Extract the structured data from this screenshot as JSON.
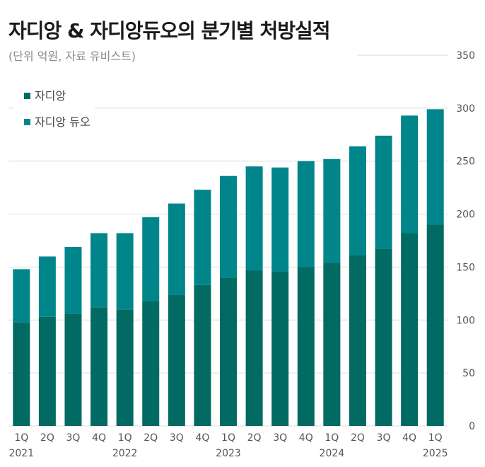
{
  "title": "자디앙 & 자디앙듀오의 분기별 처방실적",
  "subtitle": "(단위 억원, 자료 유비스트)",
  "colors": {
    "jardiance": "#006a63",
    "jardiance_duo": "#00868a",
    "grid": "#dddddd",
    "axis_text": "#555555",
    "legend_text": "#444444"
  },
  "chart_data": {
    "type": "bar",
    "stacked": true,
    "categories": [
      "1Q",
      "2Q",
      "3Q",
      "4Q",
      "1Q",
      "2Q",
      "3Q",
      "4Q",
      "1Q",
      "2Q",
      "3Q",
      "4Q",
      "1Q",
      "2Q",
      "3Q",
      "4Q",
      "1Q"
    ],
    "years": [
      "2021",
      "",
      "",
      "",
      "2022",
      "",
      "",
      "",
      "2023",
      "",
      "",
      "",
      "2024",
      "",
      "",
      "",
      "2025"
    ],
    "series": [
      {
        "name": "자디앙",
        "values": [
          98,
          103,
          106,
          112,
          110,
          118,
          124,
          133,
          140,
          147,
          146,
          150,
          154,
          161,
          167,
          182,
          190
        ]
      },
      {
        "name": "자디앙 듀오",
        "values": [
          50,
          57,
          63,
          70,
          72,
          79,
          86,
          90,
          96,
          98,
          98,
          100,
          98,
          103,
          107,
          111,
          109
        ]
      }
    ],
    "ylim": [
      0,
      350
    ],
    "yticks": [
      0,
      50,
      100,
      150,
      200,
      250,
      300,
      350
    ],
    "y_axis_position": "right",
    "grid": true,
    "legend_position": "top-left"
  }
}
